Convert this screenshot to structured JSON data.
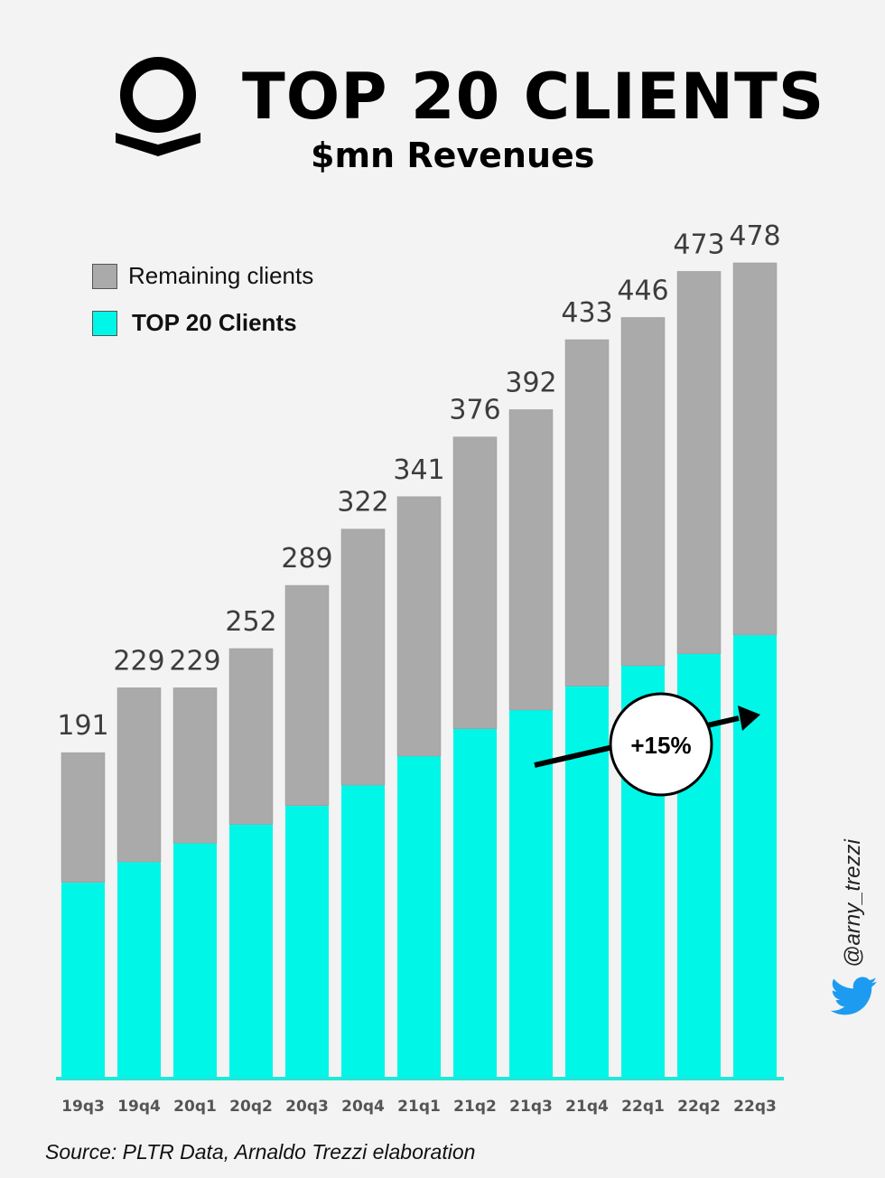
{
  "header": {
    "title": "TOP 20 CLIENTS",
    "subtitle": "$mn Revenues"
  },
  "legend": {
    "remaining_label": "Remaining clients",
    "top20_label": "TOP 20 Clients"
  },
  "colors": {
    "remaining": "#aaaaaa",
    "top20": "#00f7e8",
    "baseline": "#1ee8da",
    "label_text": "#3d3d3d",
    "background": "#f3f3f3"
  },
  "icons": [
    "palantir-logo-icon",
    "twitter-bird-icon"
  ],
  "annotation": {
    "text": "+15%"
  },
  "source": "Source: PLTR Data, Arnaldo Trezzi elaboration",
  "handle": "@arny_trezzi",
  "chart_data": {
    "type": "bar",
    "stacked": true,
    "categories": [
      "19q3",
      "19q4",
      "20q1",
      "20q2",
      "20q3",
      "20q4",
      "21q1",
      "21q2",
      "21q3",
      "21q4",
      "22q1",
      "22q2",
      "22q3"
    ],
    "totals": [
      191,
      229,
      229,
      252,
      289,
      322,
      341,
      376,
      392,
      433,
      446,
      473,
      478
    ],
    "series": [
      {
        "name": "TOP 20 Clients",
        "values": [
          115,
          127,
          138,
          149,
          160,
          172,
          189,
          205,
          216,
          230,
          242,
          249,
          260
        ]
      },
      {
        "name": "Remaining clients",
        "values": [
          76,
          102,
          91,
          103,
          129,
          150,
          152,
          171,
          176,
          203,
          204,
          224,
          218
        ]
      }
    ],
    "ylim": [
      0,
      478
    ],
    "legend_position": "top-left",
    "grid": false
  }
}
